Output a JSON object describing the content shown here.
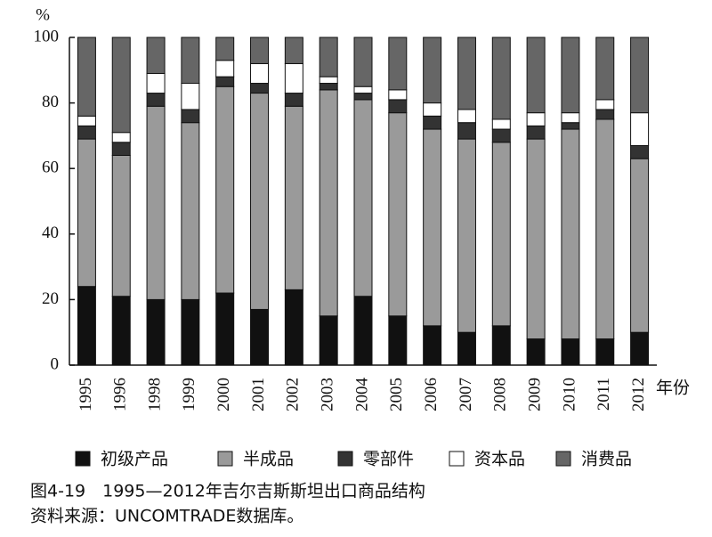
{
  "chart_data": {
    "type": "stacked-bar",
    "ylabel": "%",
    "xlabel": "年份",
    "title": "图4-19　1995—2012年吉尔吉斯斯坦出口商品结构",
    "source": "资料来源：UNCOMTRADE数据库。",
    "categories": [
      "1995",
      "1996",
      "1998",
      "1999",
      "2000",
      "2001",
      "2002",
      "2003",
      "2004",
      "2005",
      "2006",
      "2007",
      "2008",
      "2009",
      "2010",
      "2011",
      "2012"
    ],
    "series": [
      {
        "name": "初级产品",
        "color": "#111111",
        "values": [
          24,
          21,
          20,
          20,
          22,
          17,
          23,
          15,
          21,
          15,
          12,
          10,
          12,
          8,
          8,
          8,
          10
        ]
      },
      {
        "name": "半成品",
        "color": "#9a9a9a",
        "values": [
          45,
          43,
          59,
          54,
          63,
          66,
          56,
          69,
          60,
          62,
          60,
          59,
          56,
          61,
          64,
          67,
          53
        ]
      },
      {
        "name": "零部件",
        "color": "#333333",
        "values": [
          4,
          4,
          4,
          4,
          3,
          3,
          4,
          2,
          2,
          4,
          4,
          5,
          4,
          4,
          2,
          3,
          4
        ]
      },
      {
        "name": "资本品",
        "color": "#ffffff",
        "values": [
          3,
          3,
          6,
          8,
          5,
          6,
          9,
          2,
          2,
          3,
          4,
          4,
          3,
          4,
          3,
          3,
          10
        ]
      },
      {
        "name": "消费品",
        "color": "#666666",
        "values": [
          24,
          29,
          11,
          14,
          7,
          8,
          8,
          12,
          15,
          16,
          20,
          22,
          25,
          23,
          23,
          19,
          23
        ]
      }
    ],
    "ylim": [
      0,
      100
    ],
    "yticks": [
      0,
      20,
      40,
      60,
      80,
      100
    ]
  }
}
